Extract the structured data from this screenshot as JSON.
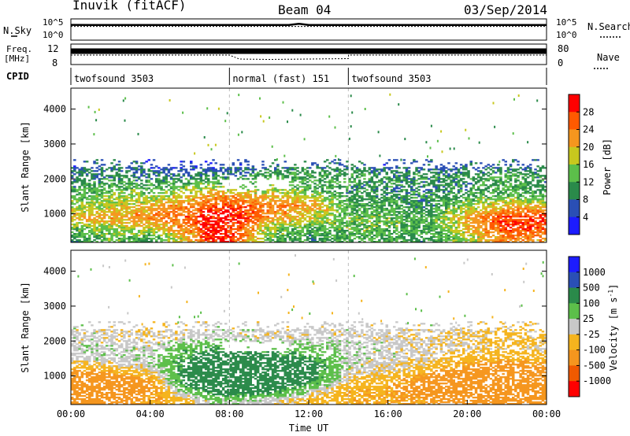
{
  "chart_data": [
    {
      "type": "line",
      "panel": "sky-noise / search-noise",
      "ylabel": "N.Sky",
      "right_label": "N.Search",
      "y_ticks_left": [
        "10^5",
        "10^0"
      ],
      "y_ticks_right": [
        "10^5",
        "10^0"
      ],
      "series": [
        {
          "name": "N.Sky",
          "x": [
            0,
            1,
            2,
            3,
            4,
            5,
            6,
            7,
            8,
            9,
            10,
            11,
            11.5,
            12,
            13,
            14,
            15,
            16,
            17,
            18,
            19,
            20,
            21,
            22,
            23,
            24
          ],
          "y": [
            35000,
            32000,
            33000,
            34000,
            33000,
            32000,
            33000,
            34000,
            32000,
            33000,
            33000,
            34000,
            90000,
            34000,
            33000,
            32000,
            33000,
            34000,
            33000,
            32000,
            33000,
            34000,
            33000,
            32000,
            33000,
            34000
          ]
        },
        {
          "name": "N.Search",
          "x": [
            0,
            2,
            4,
            6,
            8,
            10,
            12,
            14,
            16,
            18,
            20,
            22,
            24
          ],
          "y": [
            10000,
            10000,
            10000,
            10000,
            10000,
            10000,
            10000,
            10000,
            10000,
            10000,
            10000,
            10000,
            10000
          ]
        }
      ]
    },
    {
      "type": "line",
      "panel": "frequency / nave",
      "ylabel": "Freq. [MHz]",
      "right_label": "Nave",
      "y_ticks_left": [
        "12",
        "8"
      ],
      "y_ticks_right": [
        "80",
        "0"
      ],
      "series": [
        {
          "name": "Freq.",
          "x": [
            0,
            8,
            14,
            24
          ],
          "y": [
            11.0,
            11.0,
            11.0,
            11.0
          ]
        },
        {
          "name": "Nave",
          "x": [
            0,
            8,
            8.5,
            10,
            12,
            14,
            14.01,
            24
          ],
          "y": [
            40,
            40,
            20,
            18,
            20,
            22,
            40,
            40
          ]
        }
      ]
    },
    {
      "type": "table",
      "panel": "CPID",
      "label": "CPID",
      "segments": [
        {
          "start": 0,
          "end": 8,
          "name": "twofsound 3503"
        },
        {
          "start": 8,
          "end": 14,
          "name": "normal (fast) 151"
        },
        {
          "start": 14,
          "end": 24,
          "name": "twofsound 3503"
        }
      ]
    },
    {
      "type": "heatmap",
      "panel": "power",
      "ylabel": "Slant Range [km]",
      "ylim": [
        180,
        4600
      ],
      "y_ticks": [
        1000,
        2000,
        3000,
        4000
      ],
      "colorbar_label": "Power [dB]",
      "colorbar_ticks": [
        28,
        24,
        20,
        16,
        12,
        8,
        4
      ],
      "colorbar_range": [
        0,
        32
      ],
      "colors": [
        "#1c1cff",
        "#2a4fb5",
        "#2a8a4a",
        "#5cbf4a",
        "#c8c81e",
        "#f5961e",
        "#ff5a00",
        "#ff0000"
      ],
      "x_cells_hours": 0.125,
      "y_cells_km": 45,
      "sample_grid_hours": [
        0,
        2,
        4,
        6,
        7,
        8,
        10,
        12,
        14,
        16,
        18,
        20,
        22,
        24
      ],
      "sample_grid_km": [
        300,
        600,
        900,
        1200,
        1500,
        1800,
        2100,
        2400
      ],
      "sample_values_db": [
        [
          10,
          14,
          12,
          20,
          30,
          28,
          14,
          10,
          12,
          12,
          10,
          16,
          24,
          22
        ],
        [
          14,
          16,
          18,
          24,
          30,
          28,
          16,
          12,
          14,
          14,
          12,
          20,
          28,
          26
        ],
        [
          20,
          22,
          24,
          26,
          30,
          30,
          22,
          18,
          14,
          14,
          12,
          22,
          28,
          28
        ],
        [
          16,
          18,
          20,
          24,
          26,
          28,
          24,
          22,
          12,
          12,
          10,
          16,
          22,
          20
        ],
        [
          12,
          16,
          16,
          20,
          22,
          22,
          20,
          18,
          10,
          10,
          10,
          12,
          14,
          12
        ],
        [
          10,
          12,
          12,
          14,
          16,
          14,
          14,
          12,
          10,
          10,
          10,
          10,
          12,
          10
        ],
        [
          8,
          10,
          8,
          8,
          10,
          8,
          12,
          12,
          12,
          10,
          10,
          10,
          12,
          10
        ],
        [
          6,
          8,
          6,
          6,
          4,
          6,
          8,
          8,
          8,
          6,
          6,
          6,
          8,
          8
        ]
      ]
    },
    {
      "type": "heatmap",
      "panel": "velocity",
      "ylabel": "Slant Range [km]",
      "xlabel": "Time UT",
      "ylim": [
        180,
        4600
      ],
      "y_ticks": [
        1000,
        2000,
        3000,
        4000
      ],
      "x_ticks": [
        "00:00",
        "04:00",
        "08:00",
        "12:00",
        "16:00",
        "20:00",
        "00:00"
      ],
      "x_range_hours": [
        0,
        24
      ],
      "colorbar_label": "Velocity [m s-1]",
      "colorbar_ticks": [
        1000,
        500,
        100,
        25,
        -25,
        -100,
        -500,
        -1000
      ],
      "colorbar_range": [
        -1200,
        1200
      ],
      "colors": [
        "#ff0000",
        "#f05a00",
        "#f5961e",
        "#f5b41e",
        "#c8c8c8",
        "#5cbf4a",
        "#2a8a4a",
        "#2a4fb5",
        "#1c1cff"
      ],
      "sample_grid_hours": [
        0,
        2,
        4,
        6,
        7,
        8,
        10,
        12,
        14,
        16,
        18,
        20,
        22,
        24
      ],
      "sample_grid_km": [
        300,
        600,
        900,
        1200,
        1500,
        1800,
        2100,
        2400
      ],
      "sample_values_ms": [
        [
          -200,
          -150,
          -100,
          -50,
          20,
          30,
          0,
          -60,
          -80,
          -90,
          -100,
          -150,
          -200,
          -200
        ],
        [
          -300,
          -250,
          -120,
          80,
          150,
          200,
          150,
          20,
          -80,
          -100,
          -200,
          -300,
          -350,
          -300
        ],
        [
          -250,
          -200,
          -100,
          200,
          300,
          300,
          250,
          150,
          -40,
          -60,
          -150,
          -300,
          -300,
          -280
        ],
        [
          -100,
          -60,
          0,
          150,
          250,
          250,
          200,
          150,
          0,
          -20,
          -60,
          -150,
          -200,
          -150
        ],
        [
          0,
          10,
          20,
          120,
          200,
          200,
          150,
          120,
          10,
          0,
          -20,
          -60,
          -80,
          -60
        ],
        [
          10,
          10,
          0,
          80,
          100,
          80,
          60,
          50,
          10,
          0,
          -10,
          -30,
          -40,
          -30
        ],
        [
          0,
          -10,
          -20,
          0,
          10,
          0,
          -10,
          0,
          0,
          -10,
          -20,
          -40,
          -50,
          -40
        ],
        [
          0,
          0,
          -20,
          -10,
          0,
          0,
          0,
          -10,
          0,
          0,
          0,
          -20,
          -40,
          -20
        ]
      ]
    }
  ],
  "header": {
    "radar": "Inuvik (fitACF)",
    "beam": "Beam 04",
    "date": "03/Sep/2014"
  },
  "labels": {
    "nsky": "N.Sky",
    "nsearch": "N.Search",
    "freq": "Freq.",
    "mhz": "[MHz]",
    "nave": "Nave",
    "cpid": "CPID",
    "ylabel": "Slant Range [km]",
    "power": "Power [dB]",
    "velocity": "Velocity [m s",
    "velocity_sup": "-1",
    "velocity_close": "]",
    "xlabel": "Time UT",
    "tick_1e5": "10^5",
    "tick_1e0": "10^0",
    "freq_hi": "12",
    "freq_lo": "8",
    "nave_hi": "80",
    "nave_lo": "0"
  }
}
